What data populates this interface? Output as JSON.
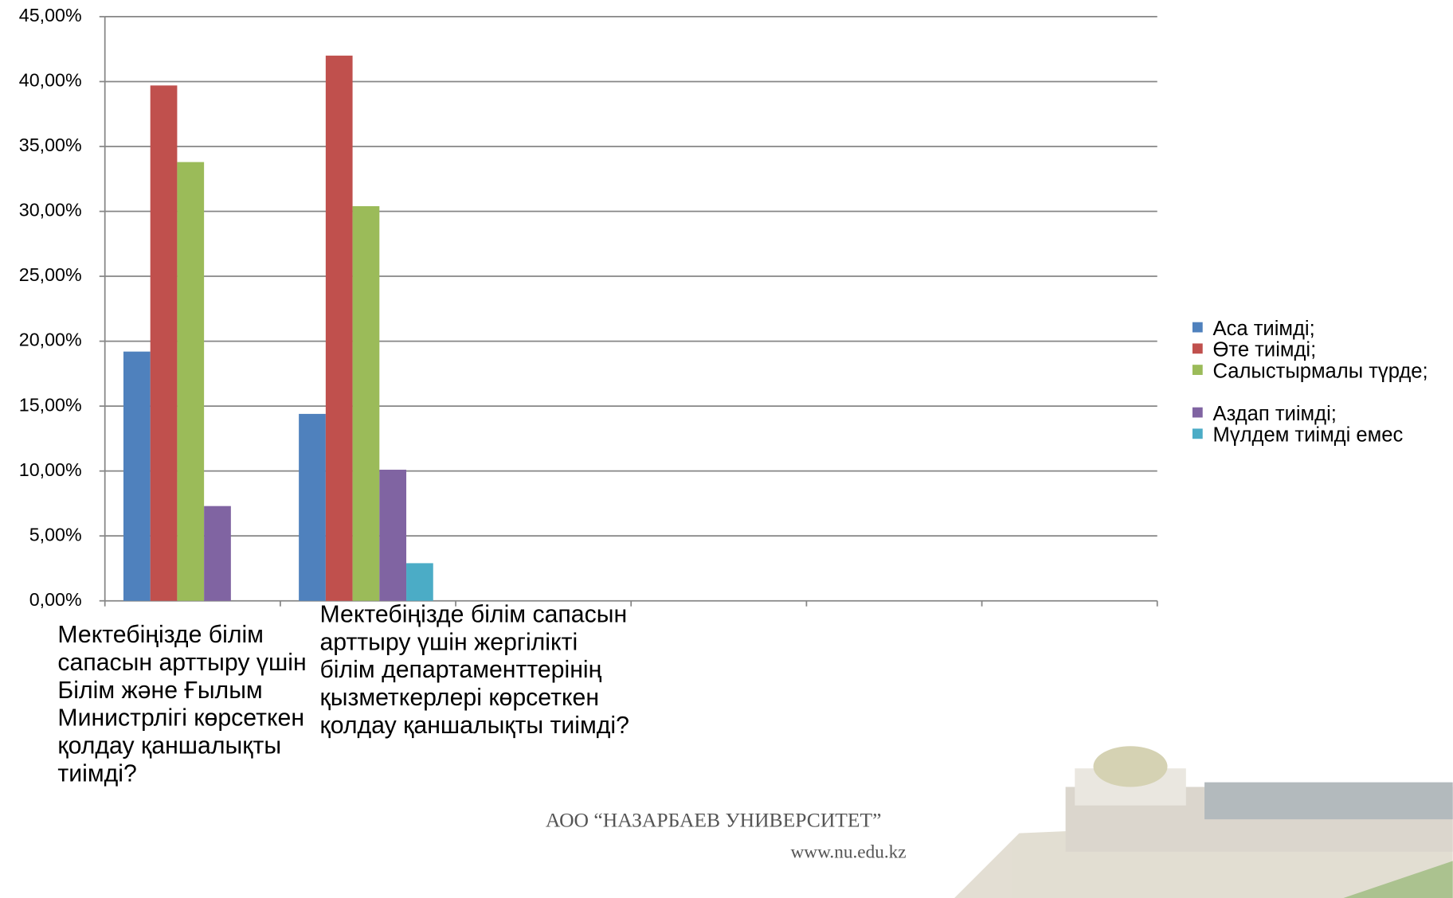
{
  "chart_data": {
    "type": "bar",
    "categories": [
      "Мектебіңізде білім сапасын арттыру үшін  Білім және Ғылым Министрлігі көрсеткен қолдау қаншалықты тиімді?",
      "Мектебіңізде білім сапасын арттыру үшін жергілікті білім департаменттерінің қызметкерлері көрсеткен қолдау қаншалықты тиімді?",
      null,
      null,
      null,
      null
    ],
    "series": [
      {
        "name": "Аса тиімді;",
        "color": "#4f81bd",
        "values": [
          19.2,
          14.4,
          null,
          null,
          null,
          null
        ]
      },
      {
        "name": "Өте тиімді;",
        "color": "#c0504d",
        "values": [
          39.7,
          42.0,
          null,
          null,
          null,
          null
        ]
      },
      {
        "name": "Салыстырмалы түрде;",
        "color": "#9bbb59",
        "values": [
          33.8,
          30.4,
          null,
          null,
          null,
          null
        ]
      },
      {
        "name": "Аздап тиімді;",
        "color": "#8064a2",
        "values": [
          7.3,
          10.1,
          null,
          null,
          null,
          null
        ]
      },
      {
        "name": "Мүлдем тиімді емес",
        "color": "#4bacc6",
        "values": [
          null,
          2.9,
          null,
          null,
          null,
          null
        ]
      }
    ],
    "ylim": [
      0,
      45
    ],
    "yticks": [
      {
        "value": 0,
        "label": "0,00%"
      },
      {
        "value": 5,
        "label": "5,00%"
      },
      {
        "value": 10,
        "label": "10,00%"
      },
      {
        "value": 15,
        "label": "15,00%"
      },
      {
        "value": 20,
        "label": "20,00%"
      },
      {
        "value": 25,
        "label": "25,00%"
      },
      {
        "value": 30,
        "label": "30,00%"
      },
      {
        "value": 35,
        "label": "35,00%"
      },
      {
        "value": 40,
        "label": "40,00%"
      },
      {
        "value": 45,
        "label": "45,00%"
      }
    ],
    "grid": true,
    "legend": "right"
  },
  "footer": {
    "org": "АОО “НАЗАРБАЕВ УНИВЕРСИТЕТ”",
    "url": "www.nu.edu.kz"
  }
}
